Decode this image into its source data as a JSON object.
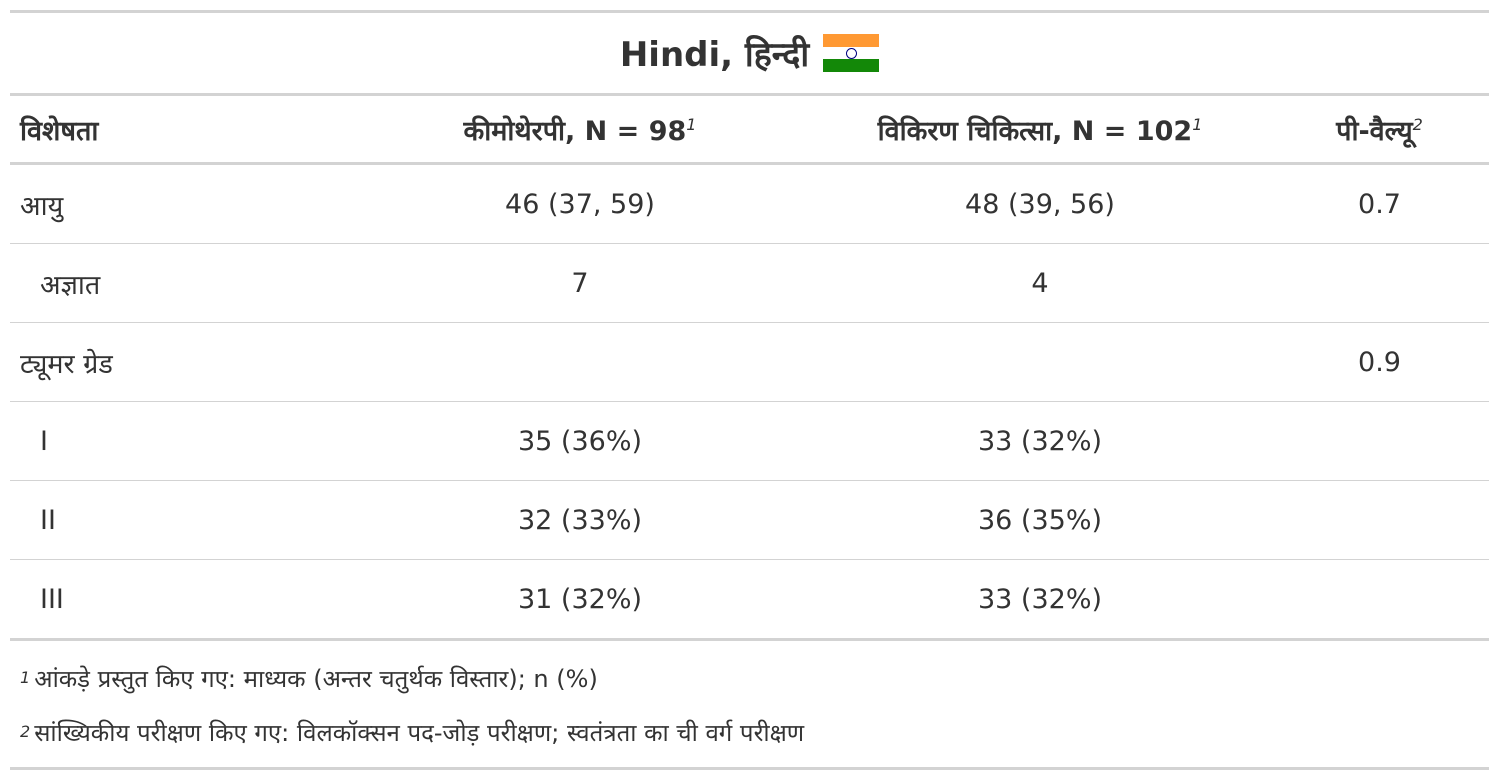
{
  "title": {
    "text": "Hindi, हिन्दी",
    "flag_icon": "india-flag-icon",
    "flag_colors": [
      "#FF9933",
      "#FFFFFF",
      "#138808",
      "#000080"
    ]
  },
  "header": {
    "characteristic": "विशेषता",
    "group1": "कीमोथेरपी, N = 98",
    "group1_mark": "1",
    "group2": "विकिरण चिकित्सा, N = 102",
    "group2_mark": "1",
    "pvalue": "पी-वैल्यू",
    "pvalue_mark": "2"
  },
  "rows": [
    {
      "label": "आयु",
      "group1": "46 (37, 59)",
      "group2": "48 (39, 56)",
      "pvalue": "0.7"
    },
    {
      "label": "अज्ञात",
      "group1": "7",
      "group2": "4",
      "pvalue": ""
    },
    {
      "label": "ट्यूमर ग्रेड",
      "group1": "",
      "group2": "",
      "pvalue": "0.9"
    },
    {
      "label": "I",
      "group1": "35 (36%)",
      "group2": "33 (32%)",
      "pvalue": ""
    },
    {
      "label": "II",
      "group1": "32 (33%)",
      "group2": "36 (35%)",
      "pvalue": ""
    },
    {
      "label": "III",
      "group1": "31 (32%)",
      "group2": "33 (32%)",
      "pvalue": ""
    }
  ],
  "footnotes": [
    {
      "mark": "1",
      "text": "आंकड़े प्रस्तुत किए गए: माध्यक (अन्तर चतुर्थक विस्तार); n (%)"
    },
    {
      "mark": "2",
      "text": "सांख्यिकीय परीक्षण किए गए: विलकॉक्सन पद-जोड़ परीक्षण; स्वतंत्रता का ची वर्ग परीक्षण"
    }
  ]
}
